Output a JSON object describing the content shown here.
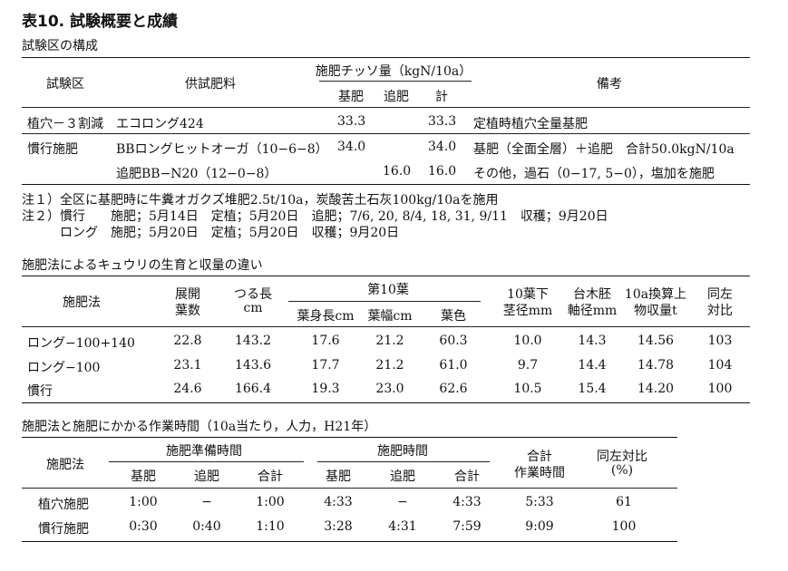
{
  "title": "表10.  試験概要と成績",
  "t1": {
    "caption": "試験区の構成",
    "headers": {
      "plot": "試験区",
      "fertilizer": "供試肥料",
      "n_amount": "施肥チッソ量（kgN/10a）",
      "basal": "基肥",
      "top": "追肥",
      "total": "計",
      "remarks": "備考"
    },
    "rows": [
      [
        "植穴－３割減",
        "エコロング424",
        "33.3",
        "",
        "33.3",
        "定植時植穴全量基肥"
      ],
      [
        "慣行施肥",
        "BBロングヒットオーガ（10−6−8）",
        "34.0",
        "",
        "34.0",
        "基肥（全面全層）＋追肥　合計50.0kgN/10a"
      ],
      [
        "",
        "追肥BB−N20（12−0−8）",
        "",
        "16.0",
        "16.0",
        "その他，過石（0−17, 5−0），塩加を施肥"
      ]
    ],
    "notes": [
      "注１）全区に基肥時に牛糞オガクズ堆肥2.5t/10a，炭酸苦土石灰100kg/10aを施用",
      "注２）慣行　　施肥；5月14日　定植；5月20日　追肥；7/6,  20,  8/4,  18,  31,  9/11　収穫；9月20日",
      "　　　ロング　施肥；5月20日　定植；5月20日　収穫；9月20日"
    ]
  },
  "t2": {
    "caption": "施肥法によるキュウリの生育と収量の違い",
    "headers": {
      "method": "施肥法",
      "leaves_a": "展開",
      "leaves_b": "葉数",
      "vine_a": "つる長",
      "vine_b": "cm",
      "leaf10": "第10葉",
      "blade": "葉身長cm",
      "width": "葉幅cm",
      "color": "葉色",
      "stem_a": "10葉下",
      "stem_b": "茎径mm",
      "root_a": "台木胚",
      "root_b": "軸径mm",
      "yield_a": "10a換算上",
      "yield_b": "物収量t",
      "ratio_a": "同左",
      "ratio_b": "対比"
    },
    "rows": [
      [
        "ロング−100+140",
        "22.8",
        "143.2",
        "17.6",
        "21.2",
        "60.3",
        "10.0",
        "14.3",
        "14.56",
        "103"
      ],
      [
        "ロング−100",
        "23.1",
        "143.6",
        "17.7",
        "21.2",
        "61.0",
        "9.7",
        "14.4",
        "14.78",
        "104"
      ],
      [
        "慣行",
        "24.6",
        "166.4",
        "19.3",
        "23.0",
        "62.6",
        "10.5",
        "15.4",
        "14.20",
        "100"
      ]
    ]
  },
  "t3": {
    "caption": "施肥法と施肥にかかる作業時間（10a当たり，人力，H21年）",
    "headers": {
      "method": "施肥法",
      "prep": "施肥準備時間",
      "fert": "施肥時間",
      "basal": "基肥",
      "top": "追肥",
      "total": "合計",
      "sum_a": "合計",
      "sum_b": "作業時間",
      "ratio_a": "同左対比",
      "ratio_b": "(%)"
    },
    "rows": [
      [
        "植穴施肥",
        "1:00",
        "−",
        "1:00",
        "4:33",
        "−",
        "4:33",
        "5:33",
        "61"
      ],
      [
        "慣行施肥",
        "0:30",
        "0:40",
        "1:10",
        "3:28",
        "4:31",
        "7:59",
        "9:09",
        "100"
      ]
    ]
  }
}
